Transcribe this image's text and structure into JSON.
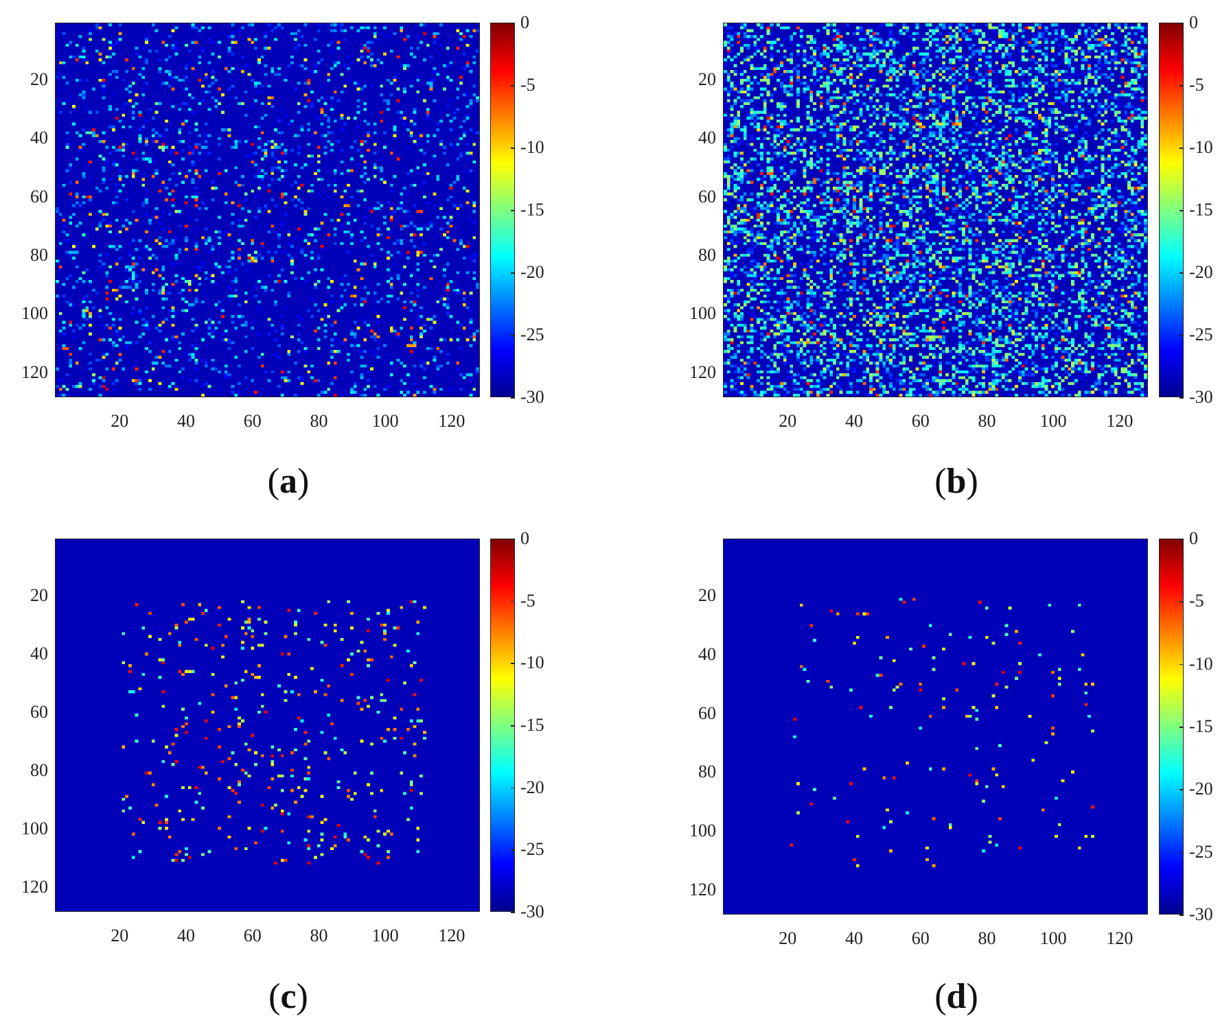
{
  "chart_data": [
    {
      "type": "heatmap",
      "panel_label": "a",
      "colormap": "jet",
      "x_ticks": [
        "20",
        "40",
        "60",
        "80",
        "100",
        "120"
      ],
      "y_ticks": [
        "20",
        "40",
        "60",
        "80",
        "100",
        "120"
      ],
      "xlim": [
        1,
        128
      ],
      "ylim": [
        1,
        128
      ],
      "colorbar_ticks": [
        "0",
        "-5",
        "-10",
        "-15",
        "-20",
        "-25",
        "-30"
      ],
      "clim": [
        -30,
        0
      ],
      "background_value": -30,
      "grid_size": 128,
      "pattern": "sparse scattered points with moderate background noise"
    },
    {
      "type": "heatmap",
      "panel_label": "b",
      "colormap": "jet",
      "x_ticks": [
        "20",
        "40",
        "60",
        "80",
        "100",
        "120"
      ],
      "y_ticks": [
        "20",
        "40",
        "60",
        "80",
        "100",
        "120"
      ],
      "xlim": [
        1,
        128
      ],
      "ylim": [
        1,
        128
      ],
      "colorbar_ticks": [
        "0",
        "-5",
        "-10",
        "-15",
        "-20",
        "-25",
        "-30"
      ],
      "clim": [
        -30,
        0
      ],
      "background_value": -30,
      "grid_size": 128,
      "pattern": "dense scattered points with heavy background noise"
    },
    {
      "type": "heatmap",
      "panel_label": "c",
      "colormap": "jet",
      "x_ticks": [
        "20",
        "40",
        "60",
        "80",
        "100",
        "120"
      ],
      "y_ticks": [
        "20",
        "40",
        "60",
        "80",
        "100",
        "120"
      ],
      "xlim": [
        1,
        128
      ],
      "ylim": [
        1,
        128
      ],
      "colorbar_ticks": [
        "0",
        "-5",
        "-10",
        "-15",
        "-20",
        "-25",
        "-30"
      ],
      "clim": [
        -30,
        0
      ],
      "background_value": -30,
      "grid_size": 128,
      "pattern": "scattered points within region x 20-110, y 20-110 on clean background"
    },
    {
      "type": "heatmap",
      "panel_label": "d",
      "colormap": "jet",
      "x_ticks": [
        "20",
        "40",
        "60",
        "80",
        "100",
        "120"
      ],
      "y_ticks": [
        "20",
        "40",
        "60",
        "80",
        "100",
        "120"
      ],
      "xlim": [
        1,
        128
      ],
      "ylim": [
        1,
        128
      ],
      "colorbar_ticks": [
        "0",
        "-5",
        "-10",
        "-15",
        "-20",
        "-25",
        "-30"
      ],
      "clim": [
        -30,
        0
      ],
      "background_value": -30,
      "grid_size": 128,
      "pattern": "few strong isolated points within region x 20-110, y 20-110 on clean background"
    }
  ]
}
